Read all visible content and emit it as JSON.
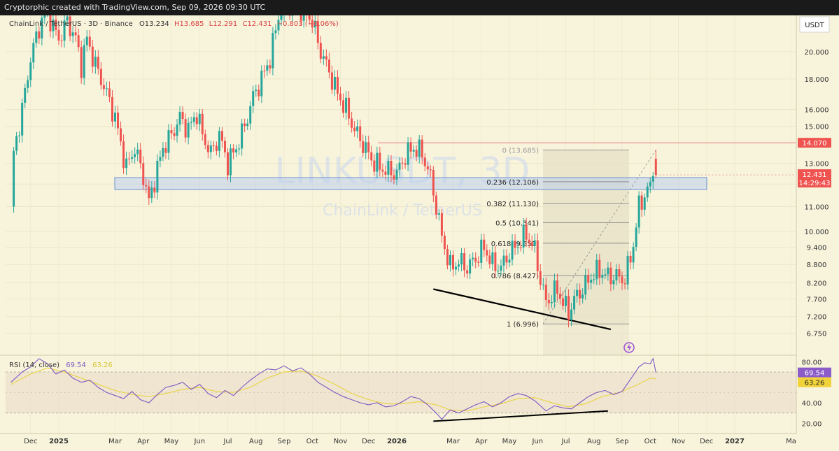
{
  "header": {
    "credit": "Cryptorphic created with TradingView.com, Sep 09, 2026 09:30 UTC"
  },
  "legend": {
    "symbol": "ChainLink / TetherUS · 3D · Binance",
    "o": "O13.234",
    "h": "H13.685",
    "l": "L12.291",
    "c": "C12.431",
    "chg": "−0.803 (−6.06%)"
  },
  "watermark": {
    "ticker": "LINKUSDT, 3D",
    "name": "ChainLink / TetherUS"
  },
  "currency": "USDT",
  "rsi_legend": {
    "label": "RSI (14, close)",
    "rsi": "69.54",
    "ma": "63.26"
  },
  "badges": {
    "resistance": "14.070",
    "last_price": "12.431",
    "countdown": "14:29:43",
    "rsi": "69.54",
    "rsi_ma": "63.26"
  },
  "colors": {
    "background": "#f8f4dc",
    "up": "#26a69a",
    "down": "#ef5350",
    "zone": "#bcd0ee",
    "zone_border": "#6a8fd4",
    "rsi_line": "#7e57c2",
    "rsi_ma": "#e8d44a",
    "fib_box": "#e6e0c6"
  },
  "chart_data": [
    {
      "type": "candlestick",
      "title": "ChainLink / TetherUS · 3D · Binance",
      "y_scale": "log",
      "ylim": [
        6.2,
        23.0
      ],
      "y_ticks": [
        6.75,
        7.2,
        7.7,
        8.2,
        8.8,
        9.4,
        10.0,
        11.0,
        12.0,
        13.0,
        15.0,
        16.0,
        18.0,
        20.0
      ],
      "y_tick_labels": [
        "6.750",
        "7.200",
        "7.700",
        "8.200",
        "8.800",
        "9.400",
        "10.000",
        "11.000",
        "12.000",
        "13.000",
        "15.000",
        "16.000",
        "18.000",
        "20.000"
      ],
      "x_ticks": [
        "Dec",
        "2025",
        "Mar",
        "Apr",
        "May",
        "Jun",
        "Jul",
        "Aug",
        "Sep",
        "Oct",
        "Nov",
        "Dec",
        "2026",
        "Mar",
        "Apr",
        "May",
        "Jun",
        "Jul",
        "Aug",
        "Sep",
        "Oct",
        "Nov",
        "Dec",
        "2027",
        "Ma"
      ],
      "x_tick_months": [
        -1.0,
        0.0,
        2.0,
        3.0,
        4.0,
        5.0,
        6.0,
        7.0,
        8.0,
        9.0,
        10.0,
        11.0,
        12.0,
        14.0,
        15.0,
        16.0,
        17.0,
        18.0,
        19.0,
        20.0,
        21.0,
        22.0,
        23.0,
        24.0,
        26.0
      ],
      "price_path": [
        [
          -1.7,
          11.0
        ],
        [
          -1.6,
          13.5
        ],
        [
          -1.3,
          16.0
        ],
        [
          -1.0,
          19.5
        ],
        [
          -0.7,
          22.0
        ],
        [
          -0.4,
          23.5
        ],
        [
          -0.2,
          22.0
        ],
        [
          0.0,
          21.0
        ],
        [
          0.3,
          22.5
        ],
        [
          0.6,
          21.0
        ],
        [
          0.8,
          19.0
        ],
        [
          1.0,
          21.0
        ],
        [
          1.3,
          19.0
        ],
        [
          1.6,
          17.5
        ],
        [
          1.8,
          16.5
        ],
        [
          2.0,
          15.5
        ],
        [
          2.2,
          14.0
        ],
        [
          2.4,
          12.8
        ],
        [
          2.7,
          13.8
        ],
        [
          3.0,
          12.4
        ],
        [
          3.2,
          11.2
        ],
        [
          3.4,
          12.2
        ],
        [
          3.7,
          13.8
        ],
        [
          4.0,
          14.5
        ],
        [
          4.3,
          15.5
        ],
        [
          4.6,
          14.8
        ],
        [
          4.9,
          15.8
        ],
        [
          5.1,
          14.5
        ],
        [
          5.4,
          13.5
        ],
        [
          5.7,
          14.5
        ],
        [
          6.0,
          13.0
        ],
        [
          6.3,
          13.8
        ],
        [
          6.6,
          15.0
        ],
        [
          6.9,
          16.8
        ],
        [
          7.2,
          18.0
        ],
        [
          7.5,
          19.5
        ],
        [
          7.8,
          23.0
        ],
        [
          8.1,
          24.0
        ],
        [
          8.4,
          23.5
        ],
        [
          8.7,
          23.5
        ],
        [
          9.0,
          22.5
        ],
        [
          9.3,
          20.0
        ],
        [
          9.6,
          18.5
        ],
        [
          9.9,
          17.0
        ],
        [
          10.2,
          16.0
        ],
        [
          10.5,
          14.8
        ],
        [
          10.8,
          14.0
        ],
        [
          11.1,
          13.2
        ],
        [
          11.4,
          12.8
        ],
        [
          11.7,
          12.6
        ],
        [
          12.0,
          12.5
        ],
        [
          12.3,
          13.4
        ],
        [
          12.6,
          13.8
        ],
        [
          12.9,
          13.5
        ],
        [
          13.2,
          12.3
        ],
        [
          13.4,
          11.0
        ],
        [
          13.6,
          9.8
        ],
        [
          13.9,
          8.7
        ],
        [
          14.2,
          8.9
        ],
        [
          14.5,
          8.7
        ],
        [
          14.8,
          9.0
        ],
        [
          15.1,
          9.4
        ],
        [
          15.4,
          8.8
        ],
        [
          15.7,
          8.7
        ],
        [
          16.0,
          9.2
        ],
        [
          16.3,
          9.5
        ],
        [
          16.6,
          9.9
        ],
        [
          16.9,
          9.3
        ],
        [
          17.1,
          8.3
        ],
        [
          17.3,
          7.6
        ],
        [
          17.5,
          7.8
        ],
        [
          17.7,
          8.0
        ],
        [
          17.9,
          7.6
        ],
        [
          18.1,
          7.3
        ],
        [
          18.3,
          7.7
        ],
        [
          18.6,
          8.0
        ],
        [
          18.9,
          8.4
        ],
        [
          19.2,
          8.6
        ],
        [
          19.5,
          8.4
        ],
        [
          19.8,
          8.4
        ],
        [
          20.1,
          8.3
        ],
        [
          20.4,
          9.5
        ],
        [
          20.6,
          11.0
        ],
        [
          20.8,
          11.5
        ],
        [
          21.0,
          11.9
        ],
        [
          21.1,
          12.7
        ],
        [
          21.2,
          12.43
        ]
      ],
      "last": {
        "open": 13.234,
        "high": 13.685,
        "low": 12.291,
        "close": 12.431
      },
      "resistance_line": 14.07,
      "support_zone": [
        11.75,
        12.3
      ],
      "fib_retracement": [
        {
          "level": "0",
          "price": 13.685,
          "label": "0 (13.685)"
        },
        {
          "level": "0.236",
          "price": 12.106,
          "label": "0.236 (12.106)"
        },
        {
          "level": "0.382",
          "price": 11.13,
          "label": "0.382 (11.130)"
        },
        {
          "level": "0.5",
          "price": 10.341,
          "label": "0.5 (10.341)"
        },
        {
          "level": "0.618",
          "price": 9.551,
          "label": "0.618 (9.551)"
        },
        {
          "level": "0.786",
          "price": 8.427,
          "label": "0.786 (8.427)"
        },
        {
          "level": "1",
          "price": 6.996,
          "label": "1 (6.996)"
        }
      ],
      "trendline": [
        [
          13.3,
          8.0
        ],
        [
          19.6,
          6.85
        ]
      ]
    },
    {
      "type": "line",
      "title": "RSI (14, close)",
      "ylim": [
        10,
        85
      ],
      "y_ticks": [
        20,
        40,
        60,
        80
      ],
      "y_tick_labels": [
        "20.00",
        "40.00",
        "60.00",
        "80.00"
      ],
      "band": [
        30,
        70
      ],
      "series": [
        {
          "name": "RSI",
          "points": [
            [
              -1.7,
              60
            ],
            [
              -1.3,
              70
            ],
            [
              -1.0,
              75
            ],
            [
              -0.7,
              83
            ],
            [
              -0.4,
              78
            ],
            [
              -0.1,
              68
            ],
            [
              0.2,
              72
            ],
            [
              0.5,
              64
            ],
            [
              0.8,
              60
            ],
            [
              1.1,
              62
            ],
            [
              1.4,
              55
            ],
            [
              1.7,
              50
            ],
            [
              2.0,
              47
            ],
            [
              2.3,
              44
            ],
            [
              2.6,
              51
            ],
            [
              2.9,
              43
            ],
            [
              3.2,
              40
            ],
            [
              3.5,
              48
            ],
            [
              3.8,
              55
            ],
            [
              4.1,
              57
            ],
            [
              4.4,
              60
            ],
            [
              4.7,
              53
            ],
            [
              5.0,
              58
            ],
            [
              5.3,
              49
            ],
            [
              5.6,
              45
            ],
            [
              5.9,
              52
            ],
            [
              6.2,
              47
            ],
            [
              6.5,
              55
            ],
            [
              6.8,
              62
            ],
            [
              7.1,
              68
            ],
            [
              7.4,
              73
            ],
            [
              7.7,
              72
            ],
            [
              8.0,
              76
            ],
            [
              8.3,
              71
            ],
            [
              8.6,
              74
            ],
            [
              8.9,
              68
            ],
            [
              9.2,
              60
            ],
            [
              9.5,
              55
            ],
            [
              9.8,
              50
            ],
            [
              10.1,
              46
            ],
            [
              10.4,
              43
            ],
            [
              10.7,
              40
            ],
            [
              11.0,
              38
            ],
            [
              11.3,
              40
            ],
            [
              11.6,
              36
            ],
            [
              11.9,
              37
            ],
            [
              12.2,
              41
            ],
            [
              12.5,
              46
            ],
            [
              12.8,
              44
            ],
            [
              13.1,
              38
            ],
            [
              13.4,
              30
            ],
            [
              13.6,
              24
            ],
            [
              13.9,
              33
            ],
            [
              14.2,
              30
            ],
            [
              14.5,
              34
            ],
            [
              14.8,
              38
            ],
            [
              15.1,
              41
            ],
            [
              15.4,
              36
            ],
            [
              15.7,
              40
            ],
            [
              16.0,
              46
            ],
            [
              16.3,
              49
            ],
            [
              16.6,
              47
            ],
            [
              16.9,
              42
            ],
            [
              17.1,
              37
            ],
            [
              17.3,
              32
            ],
            [
              17.6,
              37
            ],
            [
              17.9,
              35
            ],
            [
              18.2,
              34
            ],
            [
              18.5,
              40
            ],
            [
              18.8,
              46
            ],
            [
              19.1,
              50
            ],
            [
              19.4,
              52
            ],
            [
              19.7,
              48
            ],
            [
              20.0,
              51
            ],
            [
              20.3,
              63
            ],
            [
              20.6,
              75
            ],
            [
              20.8,
              79
            ],
            [
              21.0,
              78
            ],
            [
              21.1,
              83
            ],
            [
              21.2,
              69.54
            ]
          ]
        },
        {
          "name": "MA",
          "points": [
            [
              -1.7,
              58
            ],
            [
              -1.0,
              68
            ],
            [
              -0.4,
              74
            ],
            [
              0.2,
              70
            ],
            [
              0.8,
              64
            ],
            [
              1.4,
              58
            ],
            [
              2.0,
              52
            ],
            [
              2.6,
              48
            ],
            [
              3.2,
              46
            ],
            [
              3.8,
              49
            ],
            [
              4.4,
              53
            ],
            [
              5.0,
              55
            ],
            [
              5.6,
              51
            ],
            [
              6.2,
              50
            ],
            [
              6.8,
              55
            ],
            [
              7.4,
              64
            ],
            [
              8.0,
              70
            ],
            [
              8.6,
              71
            ],
            [
              9.2,
              66
            ],
            [
              9.8,
              58
            ],
            [
              10.4,
              49
            ],
            [
              11.0,
              43
            ],
            [
              11.6,
              39
            ],
            [
              12.2,
              39
            ],
            [
              12.8,
              41
            ],
            [
              13.4,
              38
            ],
            [
              13.9,
              33
            ],
            [
              14.5,
              32
            ],
            [
              15.1,
              36
            ],
            [
              15.7,
              39
            ],
            [
              16.3,
              44
            ],
            [
              16.9,
              45
            ],
            [
              17.5,
              40
            ],
            [
              18.1,
              36
            ],
            [
              18.7,
              39
            ],
            [
              19.3,
              46
            ],
            [
              19.9,
              50
            ],
            [
              20.5,
              57
            ],
            [
              21.0,
              64
            ],
            [
              21.2,
              63.26
            ]
          ]
        }
      ],
      "trendline": [
        [
          13.3,
          22
        ],
        [
          19.5,
          32
        ]
      ]
    }
  ]
}
